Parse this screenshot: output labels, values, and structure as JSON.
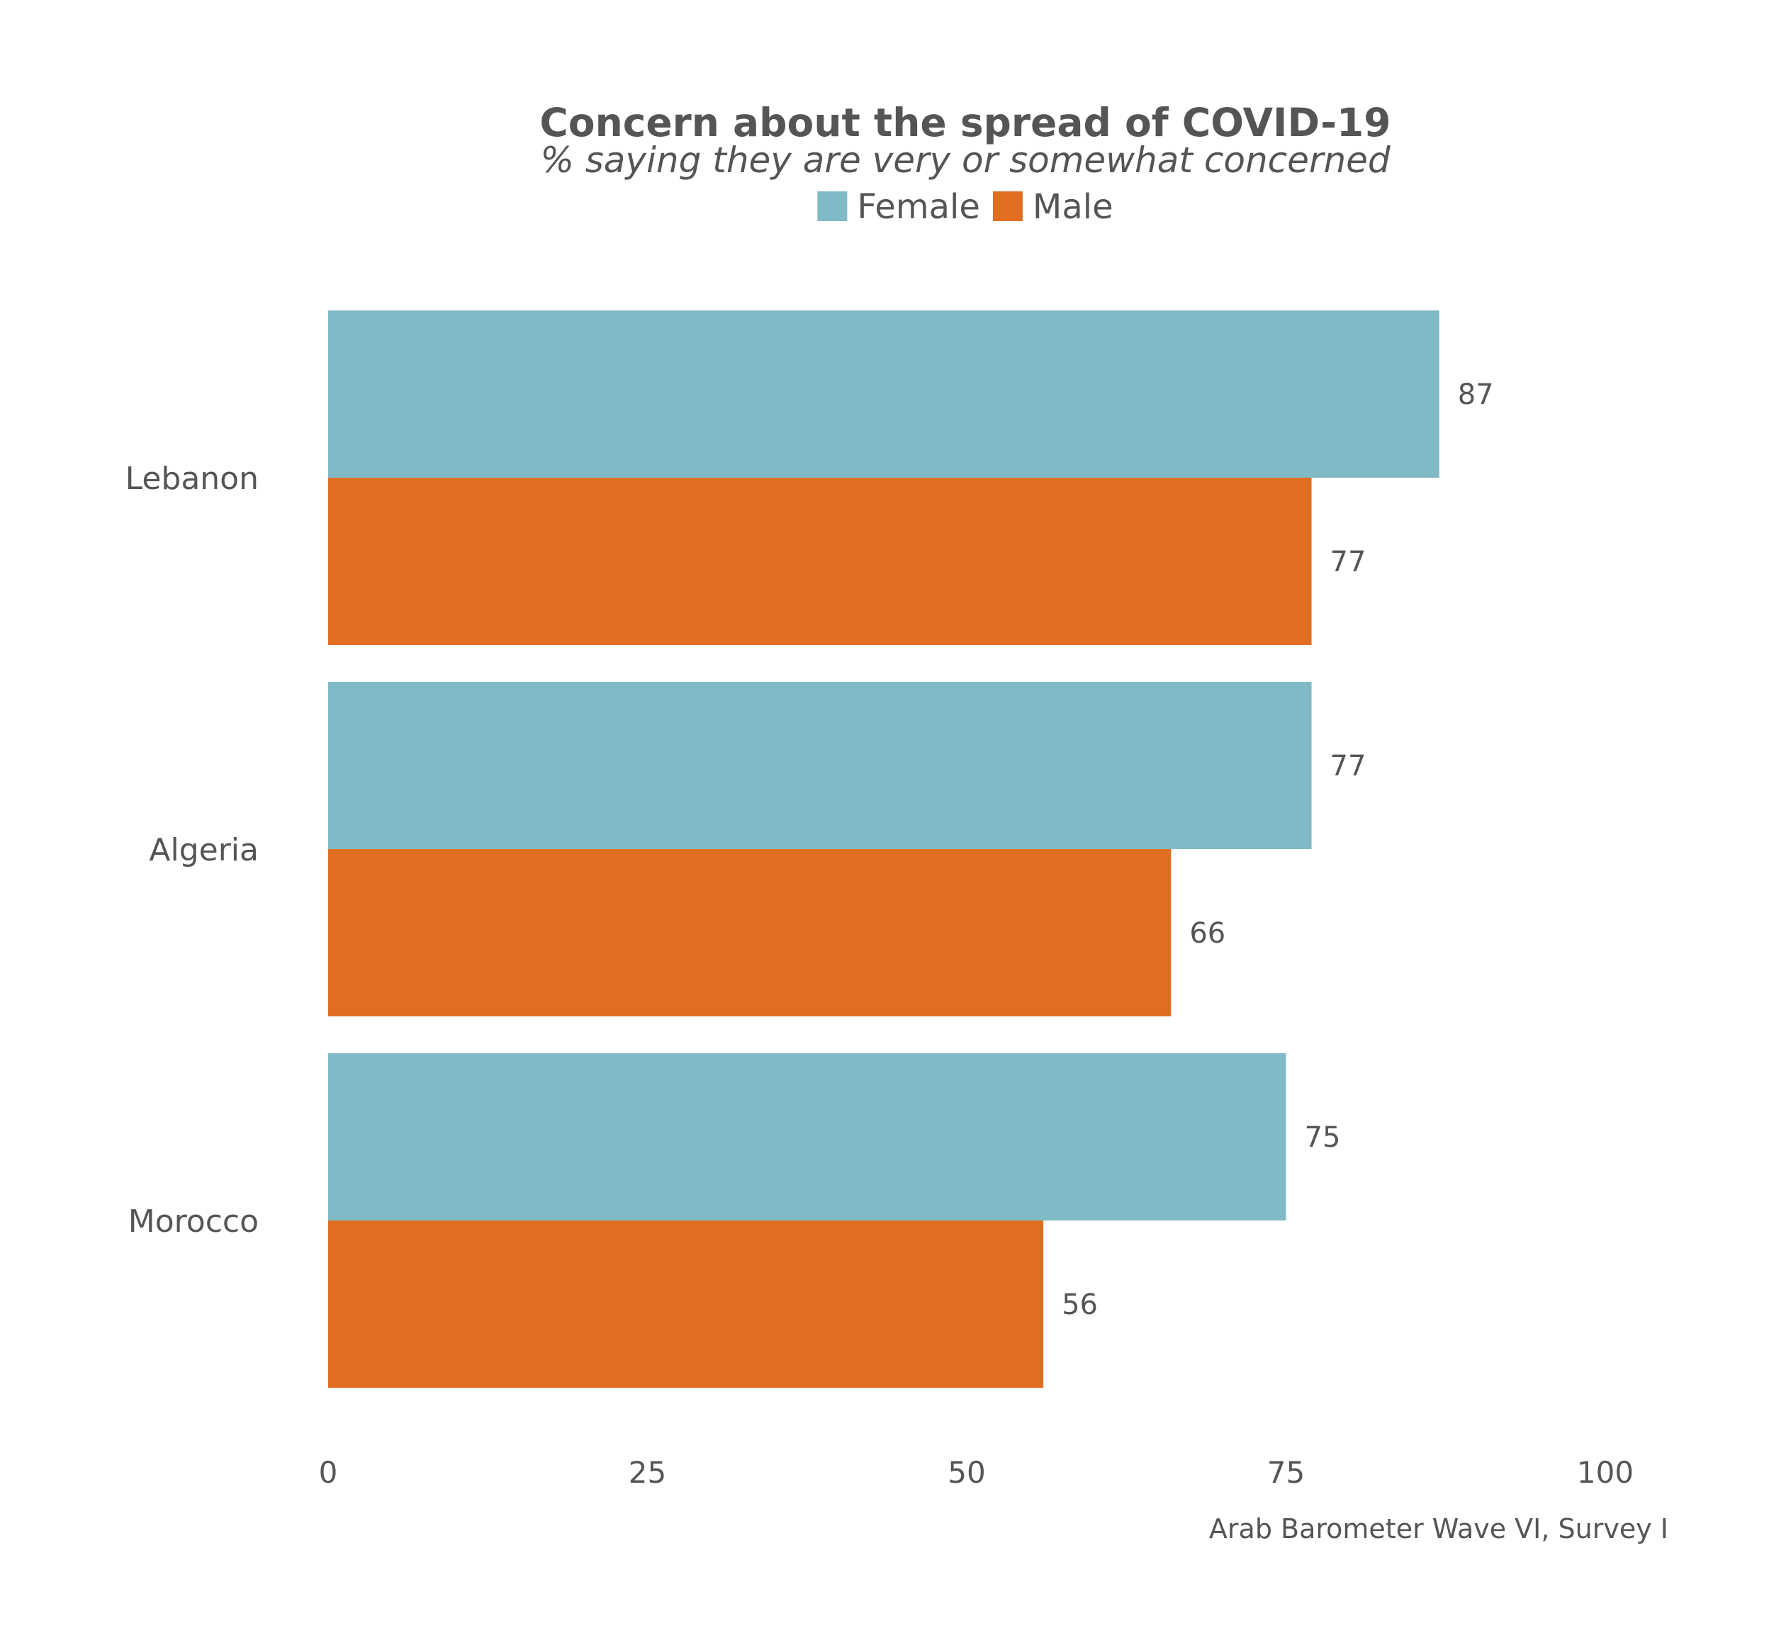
{
  "chart_data": {
    "type": "bar",
    "orientation": "horizontal",
    "title": "Concern about the spread of COVID-19",
    "subtitle": "% saying they are very or somewhat concerned",
    "categories": [
      "Lebanon",
      "Algeria",
      "Morocco"
    ],
    "series": [
      {
        "name": "Female",
        "color": "#80BAC6",
        "values": [
          87,
          77,
          75
        ]
      },
      {
        "name": "Male",
        "color": "#DF6E21",
        "values": [
          77,
          66,
          56
        ]
      }
    ],
    "xlim": [
      0,
      100
    ],
    "xticks": [
      0,
      25,
      50,
      75,
      100
    ],
    "grid": false,
    "legend_position": "top",
    "caption": "Arab Barometer Wave VI, Survey I"
  }
}
